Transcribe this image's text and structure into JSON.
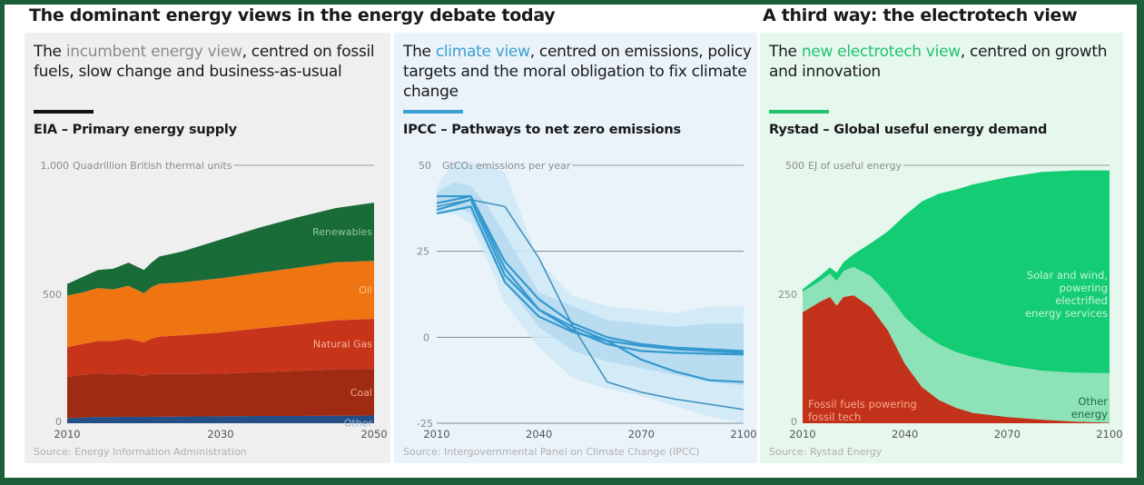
{
  "headings": {
    "left": "The dominant energy views in the energy debate today",
    "right": "A third way: the electrotech view"
  },
  "panels": [
    {
      "id": "incumbent",
      "head_pre": "The ",
      "head_highlight": "incumbent energy view",
      "head_post": ", centred on fossil fuels, slow change and business-as-usual",
      "accent_color": "#111111",
      "chart_title": "EIA – Primary energy supply",
      "source": "Source: Energy Information Administration"
    },
    {
      "id": "climate",
      "head_pre": "The ",
      "head_highlight": "climate view",
      "head_post": ", centred on emissions, policy targets and the moral obligation to fix climate change",
      "accent_color": "#3a9fd1",
      "chart_title": "IPCC – Pathways to net zero emissions",
      "source": "Source: Intergovernmental Panel on Climate Change (IPCC)"
    },
    {
      "id": "electrotech",
      "head_pre": "The ",
      "head_highlight": "new electrotech view",
      "head_post": ", centred on growth and innovation",
      "accent_color": "#22c26e",
      "chart_title": "Rystad – Global useful energy demand",
      "source": "Source: Rystad Energy"
    }
  ],
  "chart_data": [
    {
      "type": "area",
      "stacked": true,
      "title": "EIA – Primary energy supply",
      "ylabel": "Quadrillion British thermal units",
      "xlim": [
        2010,
        2050
      ],
      "ylim": [
        0,
        1000
      ],
      "xticks": [
        "2010",
        "2030",
        "2050"
      ],
      "yticks": [
        "0",
        "500",
        "1,000"
      ],
      "x": [
        2010,
        2012,
        2014,
        2016,
        2018,
        2020,
        2021,
        2022,
        2025,
        2030,
        2035,
        2040,
        2045,
        2050
      ],
      "series": [
        {
          "name": "Other",
          "color": "#234e86",
          "label_color": "#9fb4d6",
          "values": [
            20,
            22,
            24,
            24,
            25,
            24,
            25,
            25,
            26,
            27,
            28,
            28,
            29,
            30
          ]
        },
        {
          "name": "Coal",
          "color": "#a02b13",
          "label_color": "#f2a58a",
          "values": [
            160,
            165,
            170,
            165,
            168,
            160,
            165,
            166,
            165,
            165,
            170,
            175,
            180,
            180
          ]
        },
        {
          "name": "Natural Gas",
          "color": "#c8341a",
          "label_color": "#f6b49a",
          "values": [
            115,
            120,
            125,
            130,
            135,
            130,
            138,
            145,
            150,
            160,
            170,
            180,
            190,
            195
          ]
        },
        {
          "name": "Oil",
          "color": "#ee7512",
          "label_color": "#ffc48a",
          "values": [
            200,
            200,
            205,
            200,
            205,
            190,
            200,
            205,
            205,
            210,
            215,
            220,
            225,
            225
          ]
        },
        {
          "name": "Renewables",
          "color": "#196b38",
          "label_color": "#8cc9a0",
          "values": [
            45,
            60,
            70,
            80,
            90,
            90,
            95,
            105,
            120,
            150,
            175,
            195,
            210,
            225
          ]
        }
      ]
    },
    {
      "type": "line",
      "title": "IPCC – Pathways to net zero emissions",
      "ylabel": "GtCO₂ emissions per year",
      "xlim": [
        2010,
        2100
      ],
      "ylim": [
        -25,
        50
      ],
      "xticks": [
        "2010",
        "2040",
        "2070",
        "2100"
      ],
      "yticks": [
        "-25",
        "0",
        "25",
        "50"
      ],
      "bands": [
        {
          "name": "outer range",
          "x": [
            2010,
            2015,
            2020,
            2025,
            2030,
            2040,
            2050,
            2060,
            2070,
            2080,
            2090,
            2100
          ],
          "upper": [
            44,
            51,
            51,
            50,
            48,
            22,
            12,
            9,
            8,
            7,
            9,
            9
          ],
          "lower": [
            36,
            36,
            33,
            22,
            10,
            -3,
            -12,
            -15,
            -17,
            -20,
            -23,
            -25
          ]
        },
        {
          "name": "inner range",
          "x": [
            2010,
            2015,
            2020,
            2025,
            2030,
            2040,
            2050,
            2060,
            2070,
            2080,
            2090,
            2100
          ],
          "upper": [
            42,
            45,
            44,
            38,
            30,
            13,
            9,
            5,
            4,
            3,
            4,
            4
          ],
          "lower": [
            37,
            38,
            36,
            26,
            16,
            3,
            -4,
            -7,
            -9,
            -11,
            -13,
            -14
          ]
        }
      ],
      "series": [
        {
          "name": "Pathway 1",
          "x": [
            2010,
            2020,
            2030,
            2040,
            2050,
            2060,
            2070,
            2080,
            2090,
            2100
          ],
          "values": [
            41,
            41,
            22,
            11,
            4,
            0,
            -2,
            -3,
            -3.5,
            -4
          ]
        },
        {
          "name": "Pathway 2",
          "x": [
            2010,
            2020,
            2030,
            2040,
            2050,
            2060,
            2070,
            2080,
            2090,
            2100
          ],
          "values": [
            39,
            41,
            20,
            8,
            2,
            -2,
            -4,
            -4.5,
            -4.8,
            -5
          ]
        },
        {
          "name": "Pathway 3",
          "x": [
            2010,
            2020,
            2030,
            2040,
            2050,
            2060,
            2070,
            2080,
            2090,
            2100
          ],
          "values": [
            37,
            40,
            18,
            8,
            3,
            -1,
            -6.5,
            -10,
            -12.5,
            -13
          ]
        },
        {
          "name": "Pathway 4",
          "x": [
            2010,
            2020,
            2030,
            2040,
            2050,
            2060,
            2070,
            2080,
            2090,
            2100
          ],
          "values": [
            38,
            40,
            38,
            23,
            3,
            -13,
            -16,
            -18,
            -19.5,
            -21
          ]
        },
        {
          "name": "Pathway 5",
          "x": [
            2010,
            2020,
            2030,
            2040,
            2050,
            2060,
            2070,
            2080,
            2090,
            2100
          ],
          "values": [
            36,
            38,
            16,
            6,
            1.5,
            -1,
            -2.5,
            -3.5,
            -4,
            -4.5
          ]
        }
      ]
    },
    {
      "type": "area",
      "stacked": true,
      "title": "Rystad – Global useful energy demand",
      "ylabel": "EJ of useful energy",
      "xlim": [
        2010,
        2100
      ],
      "ylim": [
        0,
        500
      ],
      "xticks": [
        "2010",
        "2040",
        "2070",
        "2100"
      ],
      "yticks": [
        "0",
        "250",
        "500"
      ],
      "x": [
        2010,
        2015,
        2018,
        2020,
        2022,
        2025,
        2030,
        2035,
        2040,
        2045,
        2050,
        2055,
        2060,
        2070,
        2080,
        2090,
        2100
      ],
      "series": [
        {
          "name": "Fossil fuels powering fossil tech",
          "color": "#c2321a",
          "label_color": "#f6a88e",
          "values": [
            215,
            235,
            245,
            228,
            245,
            248,
            225,
            180,
            115,
            70,
            45,
            30,
            20,
            12,
            7,
            3,
            1
          ]
        },
        {
          "name": "Other energy",
          "color": "#8de3b7",
          "label_color": "#1f6b42",
          "values": [
            40,
            40,
            45,
            48,
            50,
            55,
            60,
            70,
            90,
            105,
            108,
            108,
            108,
            100,
            95,
            95,
            96
          ]
        },
        {
          "name": "Solar and wind, powering electrified energy services",
          "color": "#14cc73",
          "label_color": "#c8f2da",
          "values": [
            5,
            10,
            12,
            16,
            17,
            25,
            64,
            122,
            198,
            255,
            292,
            315,
            335,
            365,
            385,
            392,
            393
          ]
        }
      ]
    }
  ]
}
